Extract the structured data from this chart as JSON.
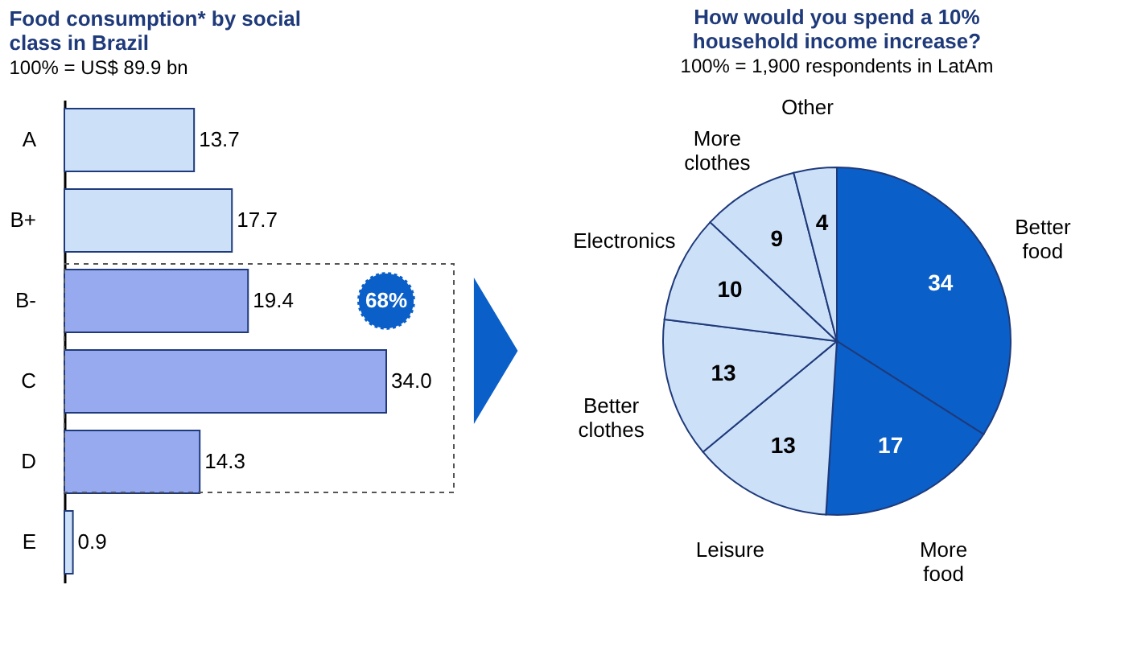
{
  "chart_data": [
    {
      "type": "bar",
      "orientation": "horizontal",
      "title": "Food consumption* by social class in Brazil",
      "subtitle": "100% = US$ 89.9 bn",
      "categories": [
        "A",
        "B+",
        "B-",
        "C",
        "D",
        "E"
      ],
      "values": [
        13.7,
        17.7,
        19.4,
        34.0,
        14.3,
        0.9
      ],
      "value_labels": [
        "13.7",
        "17.7",
        "19.4",
        "34.0",
        "14.3",
        "0.9"
      ],
      "colors": [
        "#cce0f8",
        "#cce0f8",
        "#97aaf0",
        "#97aaf0",
        "#97aaf0",
        "#cce0f8"
      ],
      "annotations": [
        "68%"
      ],
      "grid": false
    },
    {
      "type": "pie",
      "title": "How would you spend a 10% household income increase?",
      "subtitle": "100% = 1,900 respondents in LatAm",
      "categories": [
        "Better food",
        "More food",
        "Leisure",
        "Better clothes",
        "Electronics",
        "More clothes",
        "Other"
      ],
      "values": [
        34,
        17,
        13,
        13,
        10,
        9,
        4
      ],
      "colors": [
        "#0a5fc8",
        "#0a5fc8",
        "#cce0f8",
        "#cce0f8",
        "#cce0f8",
        "#cce0f8",
        "#cce0f8"
      ],
      "data_labels": true
    }
  ]
}
